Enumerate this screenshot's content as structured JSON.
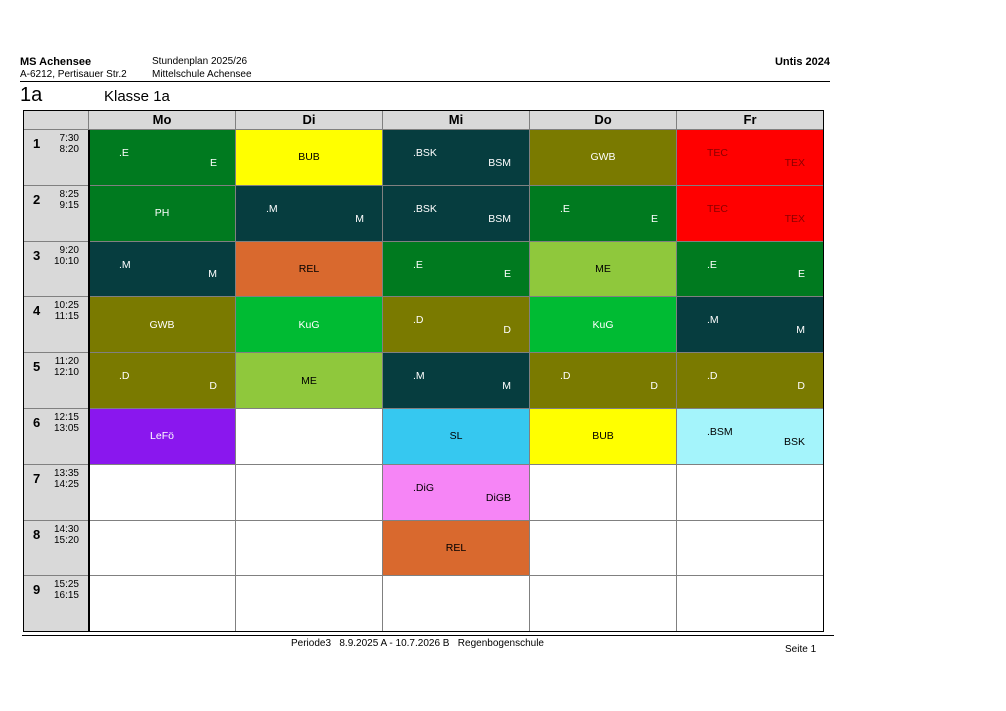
{
  "header": {
    "school_name": "MS Achensee",
    "address": "A-6212, Pertisauer Str.2",
    "title": "Stundenplan 2025/26",
    "school_full": "Mittelschule Achensee",
    "software": "Untis 2024"
  },
  "class_code": "1a",
  "class_name": "Klasse 1a",
  "days": [
    "Mo",
    "Di",
    "Mi",
    "Do",
    "Fr"
  ],
  "periods": [
    {
      "num": "1",
      "start": "7:30",
      "end": "8:20"
    },
    {
      "num": "2",
      "start": "8:25",
      "end": "9:15"
    },
    {
      "num": "3",
      "start": "9:20",
      "end": "10:10"
    },
    {
      "num": "4",
      "start": "10:25",
      "end": "11:15"
    },
    {
      "num": "5",
      "start": "11:20",
      "end": "12:10"
    },
    {
      "num": "6",
      "start": "12:15",
      "end": "13:05"
    },
    {
      "num": "7",
      "start": "13:35",
      "end": "14:25"
    },
    {
      "num": "8",
      "start": "14:30",
      "end": "15:20"
    },
    {
      "num": "9",
      "start": "15:25",
      "end": "16:15"
    }
  ],
  "lessons": [
    {
      "day": 0,
      "period": 0,
      "kind": "split",
      "top": ".E",
      "bottom": "E",
      "color": "#007a1f",
      "text_color": "#ffffff"
    },
    {
      "day": 1,
      "period": 0,
      "kind": "single",
      "label": "BUB",
      "color": "#ffff00",
      "text_color": "#000000"
    },
    {
      "day": 2,
      "period": 0,
      "kind": "split",
      "top": ".BSK",
      "bottom": "BSM",
      "color": "#063d3f",
      "text_color": "#ffffff"
    },
    {
      "day": 3,
      "period": 0,
      "kind": "single",
      "label": "GWB",
      "color": "#7a7a00",
      "text_color": "#ffffff"
    },
    {
      "day": 4,
      "period": 0,
      "kind": "split",
      "top": "TEC",
      "bottom": "TEX",
      "color": "#ff0000",
      "text_color": "#8b0000"
    },
    {
      "day": 0,
      "period": 1,
      "kind": "single",
      "label": "PH",
      "color": "#007a1f",
      "text_color": "#ffffff"
    },
    {
      "day": 1,
      "period": 1,
      "kind": "split",
      "top": ".M",
      "bottom": "M",
      "color": "#063d3f",
      "text_color": "#ffffff"
    },
    {
      "day": 2,
      "period": 1,
      "kind": "split",
      "top": ".BSK",
      "bottom": "BSM",
      "color": "#063d3f",
      "text_color": "#ffffff"
    },
    {
      "day": 3,
      "period": 1,
      "kind": "split",
      "top": ".E",
      "bottom": "E",
      "color": "#007a1f",
      "text_color": "#ffffff"
    },
    {
      "day": 4,
      "period": 1,
      "kind": "split",
      "top": "TEC",
      "bottom": "TEX",
      "color": "#ff0000",
      "text_color": "#8b0000"
    },
    {
      "day": 0,
      "period": 2,
      "kind": "split",
      "top": ".M",
      "bottom": "M",
      "color": "#063d3f",
      "text_color": "#ffffff"
    },
    {
      "day": 1,
      "period": 2,
      "kind": "single",
      "label": "REL",
      "color": "#d9692e",
      "text_color": "#000000"
    },
    {
      "day": 2,
      "period": 2,
      "kind": "split",
      "top": ".E",
      "bottom": "E",
      "color": "#007a1f",
      "text_color": "#ffffff"
    },
    {
      "day": 3,
      "period": 2,
      "kind": "single",
      "label": "ME",
      "color": "#8fc83c",
      "text_color": "#000000"
    },
    {
      "day": 4,
      "period": 2,
      "kind": "split",
      "top": ".E",
      "bottom": "E",
      "color": "#007a1f",
      "text_color": "#ffffff"
    },
    {
      "day": 0,
      "period": 3,
      "kind": "single",
      "label": "GWB",
      "color": "#7a7a00",
      "text_color": "#ffffff"
    },
    {
      "day": 1,
      "period": 3,
      "kind": "single",
      "label": "KuG",
      "color": "#00bb33",
      "text_color": "#ffffff"
    },
    {
      "day": 2,
      "period": 3,
      "kind": "split",
      "top": ".D",
      "bottom": "D",
      "color": "#7a7a00",
      "text_color": "#ffffff"
    },
    {
      "day": 3,
      "period": 3,
      "kind": "single",
      "label": "KuG",
      "color": "#00bb33",
      "text_color": "#ffffff"
    },
    {
      "day": 4,
      "period": 3,
      "kind": "split",
      "top": ".M",
      "bottom": "M",
      "color": "#063d3f",
      "text_color": "#ffffff"
    },
    {
      "day": 0,
      "period": 4,
      "kind": "split",
      "top": ".D",
      "bottom": "D",
      "color": "#7a7a00",
      "text_color": "#ffffff"
    },
    {
      "day": 1,
      "period": 4,
      "kind": "single",
      "label": "ME",
      "color": "#8fc83c",
      "text_color": "#000000"
    },
    {
      "day": 2,
      "period": 4,
      "kind": "split",
      "top": ".M",
      "bottom": "M",
      "color": "#063d3f",
      "text_color": "#ffffff"
    },
    {
      "day": 3,
      "period": 4,
      "kind": "split",
      "top": ".D",
      "bottom": "D",
      "color": "#7a7a00",
      "text_color": "#ffffff"
    },
    {
      "day": 4,
      "period": 4,
      "kind": "split",
      "top": ".D",
      "bottom": "D",
      "color": "#7a7a00",
      "text_color": "#ffffff"
    },
    {
      "day": 0,
      "period": 5,
      "kind": "single",
      "label": "LeFö",
      "color": "#8a17ee",
      "text_color": "#ffffff"
    },
    {
      "day": 2,
      "period": 5,
      "kind": "single",
      "label": "SL",
      "color": "#36c8f0",
      "text_color": "#000000"
    },
    {
      "day": 3,
      "period": 5,
      "kind": "single",
      "label": "BUB",
      "color": "#ffff00",
      "text_color": "#000000"
    },
    {
      "day": 4,
      "period": 5,
      "kind": "split",
      "top": ".BSM",
      "bottom": "BSK",
      "color": "#a4f4fb",
      "text_color": "#000000"
    },
    {
      "day": 2,
      "period": 6,
      "kind": "split",
      "top": ".DiG",
      "bottom": "DiGB",
      "color": "#f685f6",
      "text_color": "#000000"
    },
    {
      "day": 2,
      "period": 7,
      "kind": "single",
      "label": "REL",
      "color": "#d9692e",
      "text_color": "#000000"
    }
  ],
  "footer": {
    "period_info": "Periode3   8.9.2025 A - 10.7.2026 B   Regenbogenschule",
    "page": "Seite 1"
  }
}
